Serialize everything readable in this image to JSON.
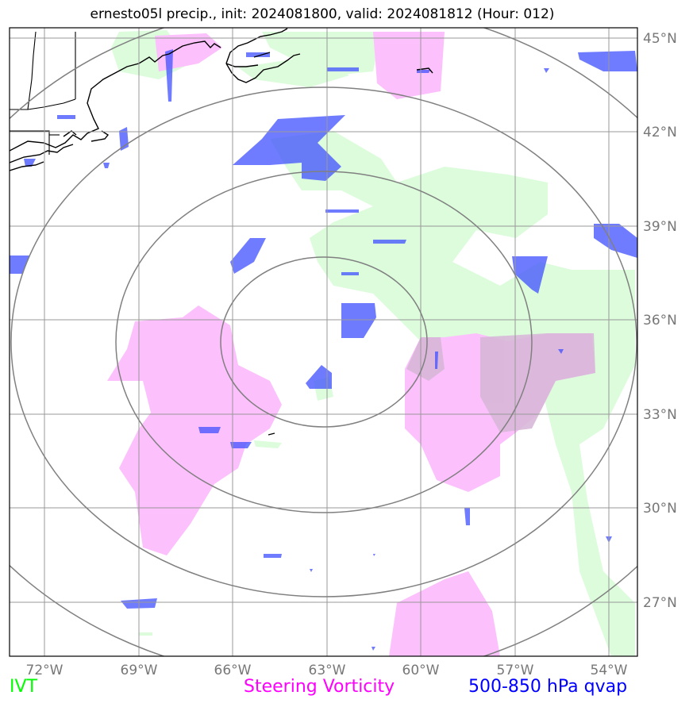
{
  "title": "ernesto05l precip., init: 2024081800, valid: 2024081812 (Hour: 012)",
  "map": {
    "lon_range": [
      -73.1,
      -53.1
    ],
    "lat_range": [
      25.3,
      45.3
    ],
    "lon_ticks": [
      "72°W",
      "69°W",
      "66°W",
      "63°W",
      "60°W",
      "57°W",
      "54°W"
    ],
    "lat_ticks": [
      "45°N",
      "42°N",
      "39°N",
      "36°N",
      "33°N",
      "30°N",
      "27°N"
    ],
    "grid": true,
    "range_rings": 4
  },
  "legend": {
    "ivt": {
      "label": "IVT",
      "color": "#00ff00"
    },
    "vorticity": {
      "label": "Steering Vorticity",
      "color": "#ff00ff"
    },
    "qvap": {
      "label": "500-850 hPa qvap",
      "color": "#0000ff"
    }
  },
  "fill_colors": {
    "ivt": "#dcfcdc",
    "vorticity": "#fcc0fc",
    "qvap": "#4050ff"
  }
}
